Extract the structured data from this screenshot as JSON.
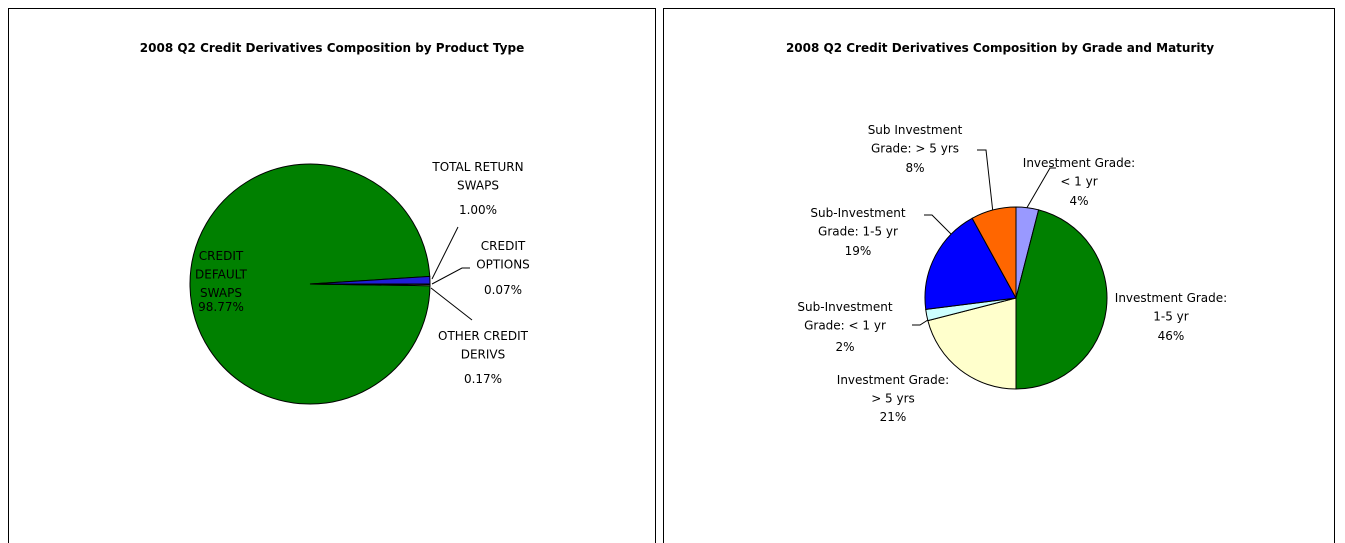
{
  "chart_data": [
    {
      "type": "pie",
      "title": "2008 Q2 Credit Derivatives Composition by Product Type",
      "categories": [
        "CREDIT\nDEFAULT\nSWAPS",
        "TOTAL RETURN\nSWAPS",
        "CREDIT\nOPTIONS",
        "OTHER CREDIT\nDERIVS"
      ],
      "values": [
        98.77,
        1.0,
        0.07,
        0.17
      ],
      "value_labels": [
        "98.77%",
        "1.00%",
        "0.07%",
        "0.17%"
      ],
      "colors": [
        "#008000",
        "#1f1fd6",
        "#9999ff",
        "#ffffcc"
      ]
    },
    {
      "type": "pie",
      "title": "2008 Q2 Credit Derivatives Composition by Grade and Maturity",
      "categories": [
        "Investment Grade:\n< 1 yr",
        "Investment Grade:\n1-5 yr",
        "Investment Grade:\n> 5 yrs",
        "Sub-Investment\nGrade: < 1 yr",
        "Sub-Investment\nGrade: 1-5 yr",
        "Sub Investment\nGrade: > 5 yrs"
      ],
      "values": [
        4,
        46,
        21,
        2,
        19,
        8
      ],
      "value_labels": [
        "4%",
        "46%",
        "21%",
        "2%",
        "19%",
        "8%"
      ],
      "colors": [
        "#9999ff",
        "#008000",
        "#ffffcc",
        "#ccffff",
        "#0000ff",
        "#ff6600"
      ]
    }
  ]
}
